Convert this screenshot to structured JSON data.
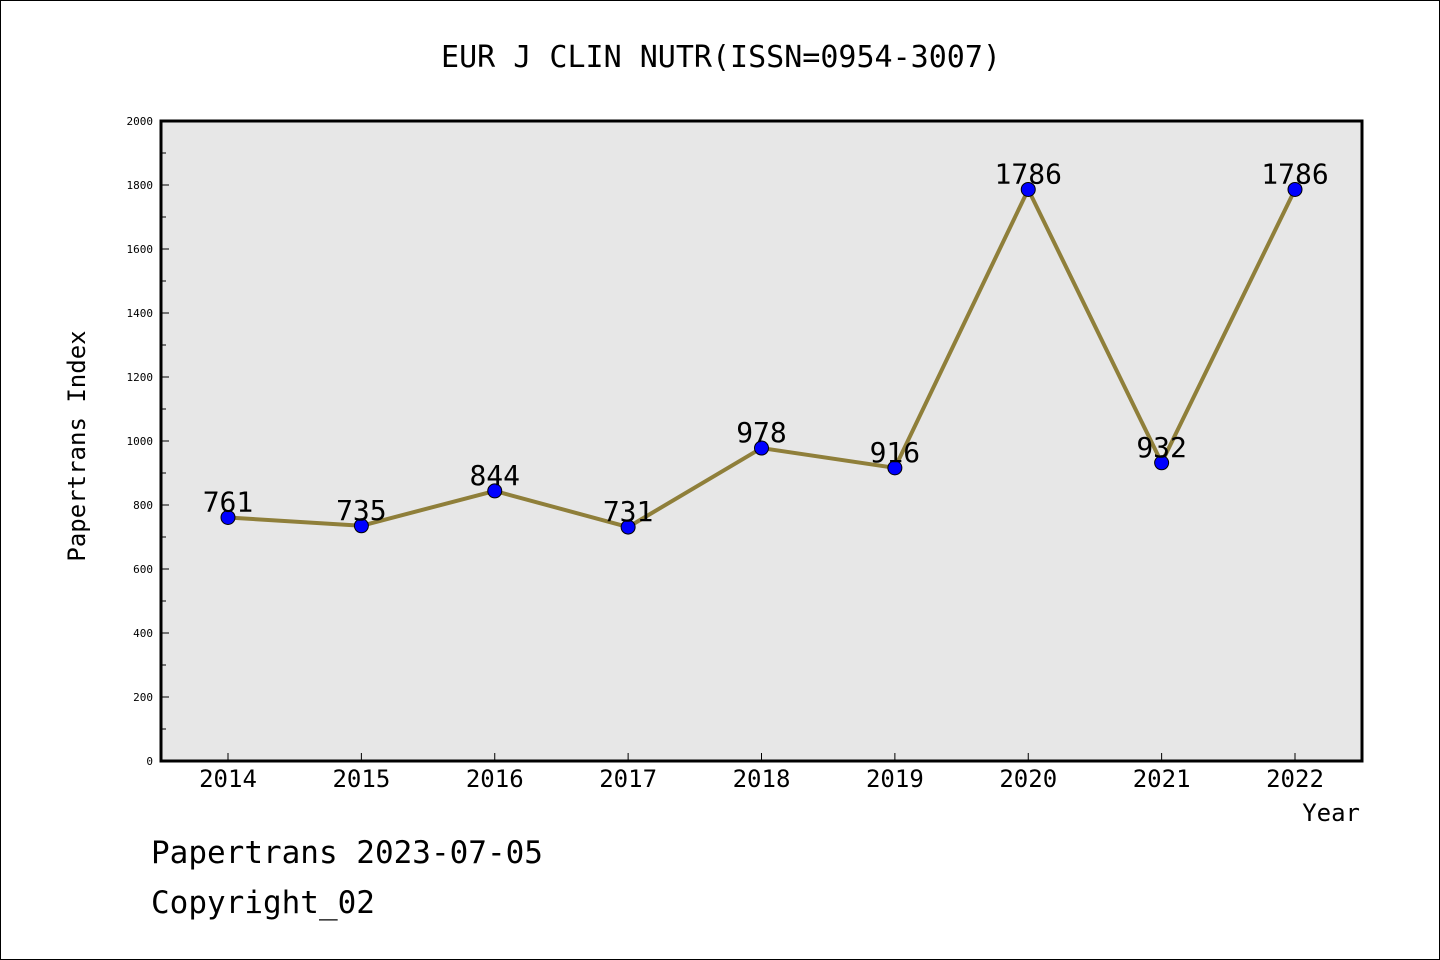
{
  "chart_data": {
    "type": "line",
    "title": "EUR J CLIN NUTR(ISSN=0954-3007)",
    "xlabel": "Year",
    "ylabel": "Papertrans Index",
    "x": [
      "2014",
      "2015",
      "2016",
      "2017",
      "2018",
      "2019",
      "2020",
      "2021",
      "2022"
    ],
    "series": [
      {
        "values": [
          761,
          735,
          844,
          731,
          978,
          916,
          1786,
          932,
          1786
        ]
      }
    ],
    "data_labels": [
      "761",
      "735",
      "844",
      "731",
      "978",
      "916",
      "1786",
      "932",
      "1786"
    ],
    "y_ticks": [
      "0",
      "200",
      "400",
      "600",
      "800",
      "1000",
      "1200",
      "1400",
      "1600",
      "1800",
      "2000"
    ],
    "ylim": [
      0,
      2000
    ],
    "grid": false,
    "colors": {
      "line": "#8f7f3a",
      "marker": "#0000ff",
      "plot_background": "#e7e7e7"
    }
  },
  "footer": {
    "source_line": "Papertrans 2023-07-05",
    "copyright": "Copyright_02"
  }
}
